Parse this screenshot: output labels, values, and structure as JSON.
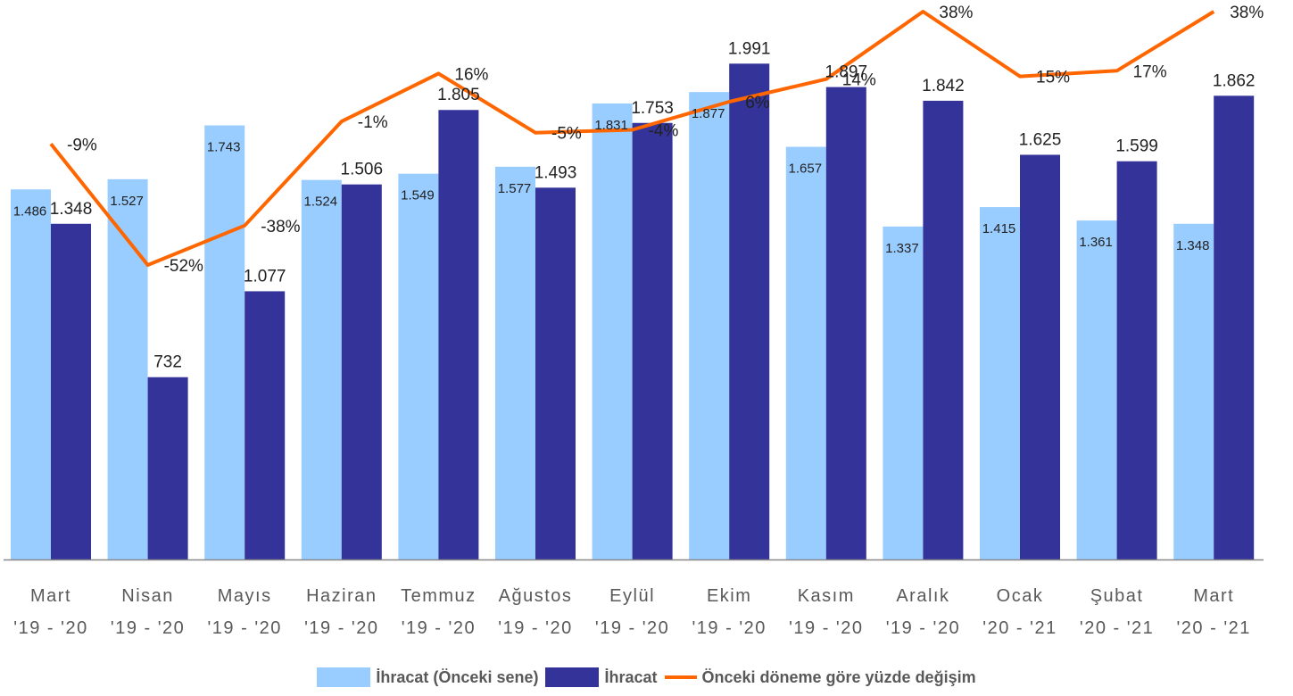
{
  "chart_data": {
    "type": "bar",
    "categories": [
      [
        "Mart",
        "'19 - '20"
      ],
      [
        "Nisan",
        "'19 - '20"
      ],
      [
        "Mayıs",
        "'19 - '20"
      ],
      [
        "Haziran",
        "'19 - '20"
      ],
      [
        "Temmuz",
        "'19 - '20"
      ],
      [
        "Ağustos",
        "'19 - '20"
      ],
      [
        "Eylül",
        "'19 - '20"
      ],
      [
        "Ekim",
        "'19 - '20"
      ],
      [
        "Kasım",
        "'19 - '20"
      ],
      [
        "Aralık",
        "'19 - '20"
      ],
      [
        "Ocak",
        "'20 - '21"
      ],
      [
        "Şubat",
        "'20 - '21"
      ],
      [
        "Mart",
        "'20 - '21"
      ]
    ],
    "series": [
      {
        "name": "İhracat (Önceki sene)",
        "type": "bar",
        "color": "#99ccff",
        "values": [
          1486,
          1527,
          1743,
          1524,
          1549,
          1577,
          1831,
          1877,
          1657,
          1337,
          1415,
          1361,
          1348
        ],
        "labels": [
          "1.486",
          "1.527",
          "1.743",
          "1.524",
          "1.549",
          "1.577",
          "1.831",
          "1.877",
          "1.657",
          "1.337",
          "1.415",
          "1.361",
          "1.348"
        ]
      },
      {
        "name": "İhracat",
        "type": "bar",
        "color": "#333399",
        "values": [
          1348,
          732,
          1077,
          1506,
          1805,
          1493,
          1753,
          1991,
          1897,
          1842,
          1625,
          1599,
          1862
        ],
        "labels": [
          "1.348",
          "732",
          "1.077",
          "1.506",
          "1.805",
          "1.493",
          "1.753",
          "1.991",
          "1.897",
          "1.842",
          "1.625",
          "1.599",
          "1.862"
        ]
      },
      {
        "name": "Önceki döneme göre yüzde değişim",
        "type": "line",
        "color": "#ff6600",
        "values": [
          -9,
          -52,
          -38,
          -1,
          16,
          -5,
          -4,
          6,
          14,
          38,
          15,
          17,
          38
        ],
        "labels": [
          "-9%",
          "-52%",
          "-38%",
          "-1%",
          "16%",
          "-5%",
          "-4%",
          "6%",
          "14%",
          "38%",
          "15%",
          "17%",
          "38%"
        ]
      }
    ],
    "bar_ylim": [
      0,
      2200
    ],
    "line_ylim": [
      -52,
      38
    ],
    "legend_position": "bottom",
    "grid": false
  }
}
